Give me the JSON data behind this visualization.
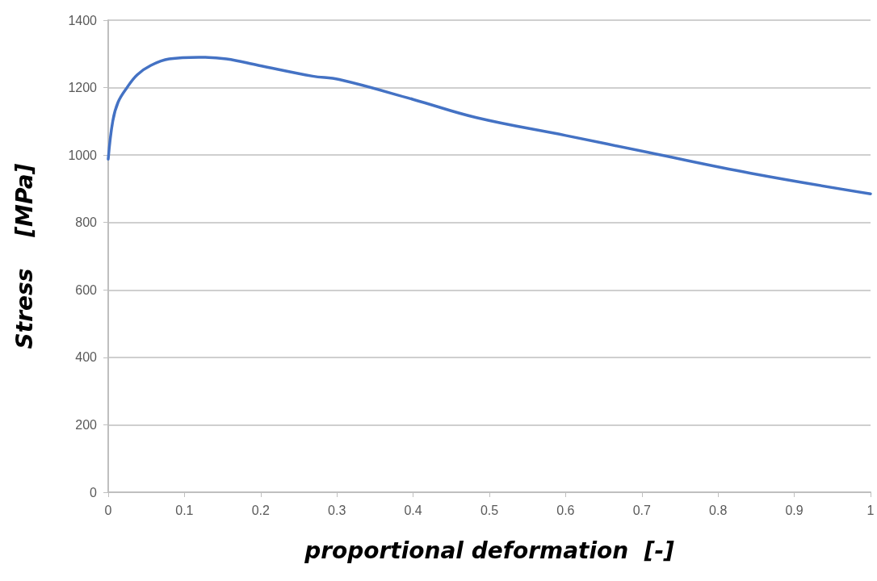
{
  "chart_data": {
    "type": "line",
    "xlabel": "proportional deformation  [-]",
    "ylabel": "Stress    [MPa]",
    "x": [
      0,
      0.006,
      0.013,
      0.024,
      0.038,
      0.056,
      0.08,
      0.119,
      0.155,
      0.197,
      0.268,
      0.303,
      0.4,
      0.483,
      0.6,
      0.708,
      0.843,
      1
    ],
    "series": [
      {
        "color": "#4472c4",
        "values": [
          988,
          1101,
          1157,
          1198,
          1238,
          1266,
          1285,
          1290,
          1285,
          1266,
          1234,
          1224,
          1165,
          1111,
          1058,
          1008,
          946,
          885
        ]
      }
    ],
    "xlim": [
      0,
      1
    ],
    "xticks": [
      0,
      0.1,
      0.2,
      0.3,
      0.4,
      0.5,
      0.6,
      0.7,
      0.8,
      0.9,
      1
    ],
    "ylim": [
      0,
      1400
    ],
    "yticks": [
      0,
      200,
      400,
      600,
      800,
      1000,
      1200,
      1400
    ],
    "grid": "y",
    "marker": "none",
    "line_style": "solid"
  }
}
